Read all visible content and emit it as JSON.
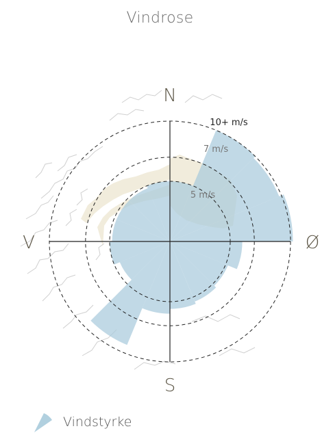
{
  "title": "Vindrose",
  "chart_data": {
    "type": "wind-rose",
    "title": "Vindrose",
    "directions": [
      "N",
      "Ø",
      "S",
      "V"
    ],
    "ring_labels": [
      "5 m/s",
      "7 m/s",
      "10+ m/s"
    ],
    "ring_values": [
      5,
      7,
      10
    ],
    "max_value": 10,
    "series": [
      {
        "name": "Vindstyrke",
        "color": "#a9cbdc",
        "sectors": [
          {
            "from_deg": 0,
            "to_deg": 22.5,
            "value": 5.0
          },
          {
            "from_deg": 22.5,
            "to_deg": 45,
            "value": 10.0
          },
          {
            "from_deg": 45,
            "to_deg": 67.5,
            "value": 9.8
          },
          {
            "from_deg": 67.5,
            "to_deg": 90,
            "value": 10.2
          },
          {
            "from_deg": 90,
            "to_deg": 112.5,
            "value": 6.0
          },
          {
            "from_deg": 112.5,
            "to_deg": 135,
            "value": 5.2
          },
          {
            "from_deg": 135,
            "to_deg": 157.5,
            "value": 5.4
          },
          {
            "from_deg": 157.5,
            "to_deg": 180,
            "value": 5.6
          },
          {
            "from_deg": 180,
            "to_deg": 202.5,
            "value": 6.0
          },
          {
            "from_deg": 202.5,
            "to_deg": 225,
            "value": 9.3
          },
          {
            "from_deg": 225,
            "to_deg": 247.5,
            "value": 4.5
          },
          {
            "from_deg": 247.5,
            "to_deg": 270,
            "value": 5.0
          },
          {
            "from_deg": 270,
            "to_deg": 292.5,
            "value": 4.8
          },
          {
            "from_deg": 292.5,
            "to_deg": 315,
            "value": 4.8
          },
          {
            "from_deg": 315,
            "to_deg": 337.5,
            "value": 4.8
          },
          {
            "from_deg": 337.5,
            "to_deg": 360,
            "value": 5.0
          }
        ]
      }
    ],
    "legend": {
      "placement": "bottom-left",
      "entries": [
        "Vindstyrke"
      ]
    },
    "background_map": {
      "land_color": "#f1ecdc",
      "coast_color": "#cfcfcf"
    }
  }
}
